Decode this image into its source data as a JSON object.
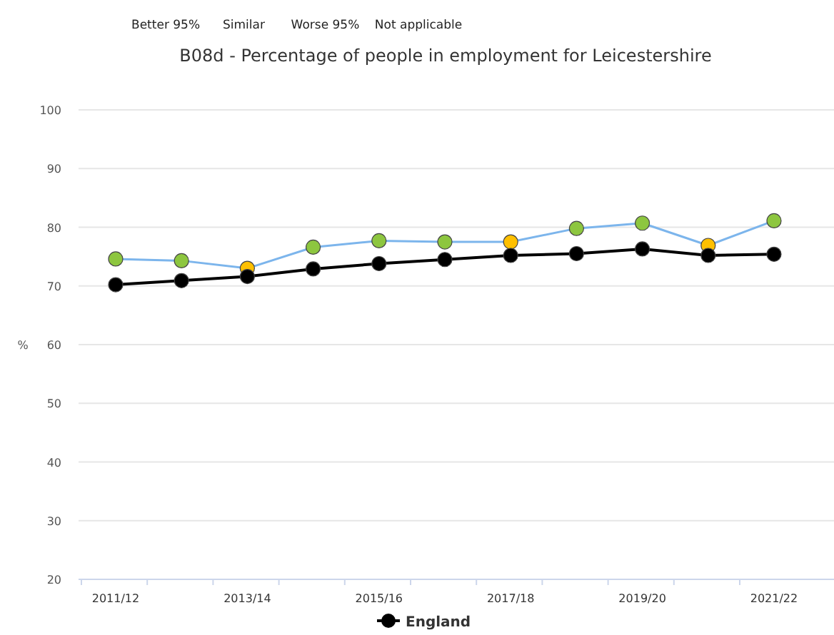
{
  "chart_data": {
    "type": "line",
    "title": "B08d - Percentage of people in employment for Leicestershire",
    "ylabel": "%",
    "annotations": [
      "Better 95%",
      "Similar",
      "Worse 95%",
      "Not applicable"
    ],
    "categories": [
      "2011/12",
      null,
      "2013/14",
      null,
      "2015/16",
      null,
      "2017/18",
      null,
      "2019/20",
      null,
      "2021/22"
    ],
    "series": [
      {
        "color": "#7cb5ec",
        "colors": [
          "#8dc63f",
          "#8dc63f",
          "#ffc000",
          "#8dc63f",
          "#8dc63f",
          "#8dc63f",
          "#ffc000",
          "#8dc63f",
          "#8dc63f",
          "#ffc000",
          "#8dc63f"
        ],
        "values": [
          74.6,
          74.3,
          73.0,
          76.6,
          77.7,
          77.5,
          77.5,
          79.8,
          80.7,
          76.9,
          81.1
        ]
      },
      {
        "name": "England",
        "color": "#000000",
        "values": [
          70.2,
          70.9,
          71.6,
          72.9,
          73.8,
          74.5,
          75.2,
          75.5,
          76.3,
          75.2,
          75.4
        ]
      }
    ],
    "ylim": [
      20,
      100
    ],
    "yticks": [
      20,
      30,
      40,
      50,
      60,
      70,
      80,
      90,
      100
    ],
    "grid": "y",
    "legend": "bottom",
    "marker": "circle"
  }
}
